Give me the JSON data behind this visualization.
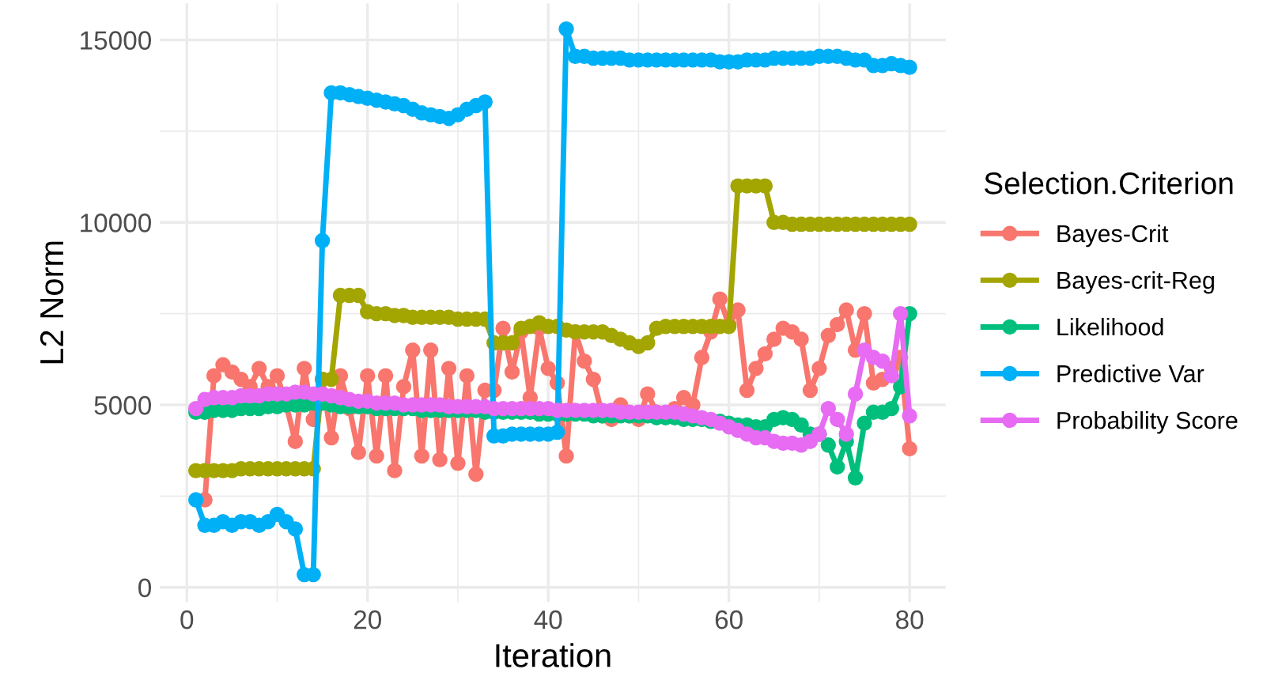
{
  "chart_data": {
    "type": "line",
    "xlabel": "Iteration",
    "ylabel": "L2 Norm",
    "legend_title": "Selection.Criterion",
    "legend": "right",
    "grid": true,
    "marker": "circle",
    "line_style": "solid",
    "xlim": [
      -3,
      84
    ],
    "ylim": [
      -400,
      16000
    ],
    "xticks": [
      0,
      {
        "value": 10,
        "label": null
      },
      20,
      {
        "value": 30,
        "label": null
      },
      40,
      {
        "value": 50,
        "label": null
      },
      60,
      {
        "value": 70,
        "label": null
      },
      80
    ],
    "yticks": [
      0,
      {
        "value": 2500,
        "label": null
      },
      5000,
      {
        "value": 7500,
        "label": null
      },
      10000,
      {
        "value": 12500,
        "label": null
      },
      15000
    ],
    "x": [
      1,
      2,
      3,
      4,
      5,
      6,
      7,
      8,
      9,
      10,
      11,
      12,
      13,
      14,
      15,
      16,
      17,
      18,
      19,
      20,
      21,
      22,
      23,
      24,
      25,
      26,
      27,
      28,
      29,
      30,
      31,
      32,
      33,
      34,
      35,
      36,
      37,
      38,
      39,
      40,
      41,
      42,
      43,
      44,
      45,
      46,
      47,
      48,
      49,
      50,
      51,
      52,
      53,
      54,
      55,
      56,
      57,
      58,
      59,
      60,
      61,
      62,
      63,
      64,
      65,
      66,
      67,
      68,
      69,
      70,
      71,
      72,
      73,
      74,
      75,
      76,
      77,
      78,
      79,
      80
    ],
    "series": [
      {
        "name": "Bayes-Crit",
        "color": "#f8766d",
        "values": [
          null,
          2400,
          5800,
          6100,
          5900,
          5700,
          5500,
          6000,
          5500,
          5800,
          5000,
          4000,
          6000,
          4600,
          5700,
          4100,
          5800,
          4900,
          3700,
          5800,
          3600,
          5800,
          3200,
          5500,
          6500,
          3600,
          6500,
          3500,
          6000,
          3400,
          5800,
          3100,
          5400,
          5400,
          7100,
          5900,
          7000,
          5200,
          7100,
          6000,
          5600,
          3600,
          7000,
          6200,
          5700,
          4700,
          4600,
          5000,
          4700,
          4600,
          5300,
          4800,
          null,
          4900,
          5200,
          5000,
          6300,
          7000,
          7900,
          7200,
          7600,
          5400,
          6000,
          6400,
          6800,
          7100,
          7000,
          6800,
          5400,
          6000,
          6900,
          7200,
          7600,
          6500,
          7500,
          5600,
          5700,
          6000,
          6300,
          3800
        ]
      },
      {
        "name": "Bayes-crit-Reg",
        "color": "#a3a500",
        "values": [
          3200,
          3200,
          3200,
          3200,
          3200,
          3250,
          3250,
          3250,
          3250,
          3250,
          3250,
          3250,
          3250,
          3250,
          5700,
          5700,
          8000,
          8000,
          8000,
          7550,
          7500,
          7500,
          7450,
          7450,
          7400,
          7400,
          7400,
          7400,
          7400,
          7350,
          7350,
          7350,
          7350,
          6700,
          6700,
          6700,
          7100,
          7150,
          7250,
          7150,
          7150,
          7050,
          7000,
          7000,
          7000,
          7000,
          6900,
          6800,
          6700,
          6600,
          6700,
          7100,
          7150,
          7150,
          7150,
          7150,
          7150,
          7150,
          7150,
          7150,
          11000,
          11000,
          11000,
          11000,
          10000,
          10000,
          9950,
          9950,
          9950,
          9950,
          9950,
          9950,
          9950,
          9950,
          9950,
          9950,
          9950,
          9950,
          9950,
          9950
        ]
      },
      {
        "name": "Likelihood",
        "color": "#00bf7d",
        "values": [
          4800,
          4800,
          4850,
          4850,
          4850,
          4900,
          4900,
          4900,
          4950,
          4950,
          5000,
          5000,
          5000,
          5050,
          5050,
          5000,
          4950,
          4950,
          4950,
          4950,
          4900,
          4900,
          4900,
          4900,
          4900,
          4850,
          4850,
          4850,
          4850,
          4850,
          4850,
          4850,
          4800,
          4800,
          4800,
          4800,
          4800,
          4800,
          4750,
          4750,
          4750,
          4750,
          4750,
          4750,
          4700,
          4700,
          4700,
          4700,
          4700,
          4700,
          4700,
          4650,
          4650,
          4650,
          4600,
          4600,
          4600,
          4550,
          4550,
          4500,
          4450,
          4450,
          4400,
          4400,
          4600,
          4650,
          4600,
          4450,
          4200,
          4200,
          3900,
          3300,
          4000,
          3000,
          4500,
          4800,
          4800,
          4900,
          5500,
          7500
        ]
      },
      {
        "name": "Predictive Var",
        "color": "#00b0f6",
        "values": [
          2400,
          1700,
          1700,
          1800,
          1700,
          1800,
          1800,
          1700,
          1800,
          2000,
          1800,
          1600,
          350,
          350,
          9500,
          13550,
          13550,
          13500,
          13450,
          13400,
          13350,
          13300,
          13250,
          13200,
          13100,
          13000,
          12950,
          12900,
          12850,
          12950,
          13100,
          13200,
          13300,
          4150,
          4150,
          4200,
          4200,
          4200,
          4200,
          4200,
          4250,
          15300,
          14550,
          14550,
          14500,
          14500,
          14500,
          14500,
          14450,
          14450,
          14450,
          14450,
          14450,
          14450,
          14450,
          14450,
          14450,
          14450,
          14400,
          14400,
          14400,
          14450,
          14450,
          14450,
          14500,
          14500,
          14500,
          14500,
          14500,
          14550,
          14550,
          14550,
          14500,
          14450,
          14450,
          14300,
          14300,
          14350,
          14300,
          14250
        ]
      },
      {
        "name": "Probability Score",
        "color": "#e76bf3",
        "values": [
          4900,
          5150,
          5200,
          5200,
          5200,
          5250,
          5250,
          5250,
          5300,
          5300,
          5300,
          5350,
          5350,
          5300,
          5300,
          5250,
          5200,
          5150,
          5100,
          5100,
          5050,
          5050,
          5050,
          5000,
          5000,
          5000,
          5000,
          5000,
          4950,
          4950,
          4950,
          4950,
          4950,
          4900,
          4900,
          4900,
          4900,
          4900,
          4900,
          4900,
          4850,
          4850,
          4850,
          4850,
          4850,
          4850,
          4850,
          4800,
          4800,
          4800,
          4800,
          4800,
          4800,
          4800,
          4750,
          4700,
          4650,
          4600,
          4500,
          4400,
          4300,
          4200,
          4100,
          4100,
          4000,
          3950,
          3950,
          3900,
          4000,
          4200,
          4900,
          4600,
          4200,
          5300,
          6500,
          6300,
          6200,
          5800,
          7500,
          4700
        ]
      }
    ]
  }
}
